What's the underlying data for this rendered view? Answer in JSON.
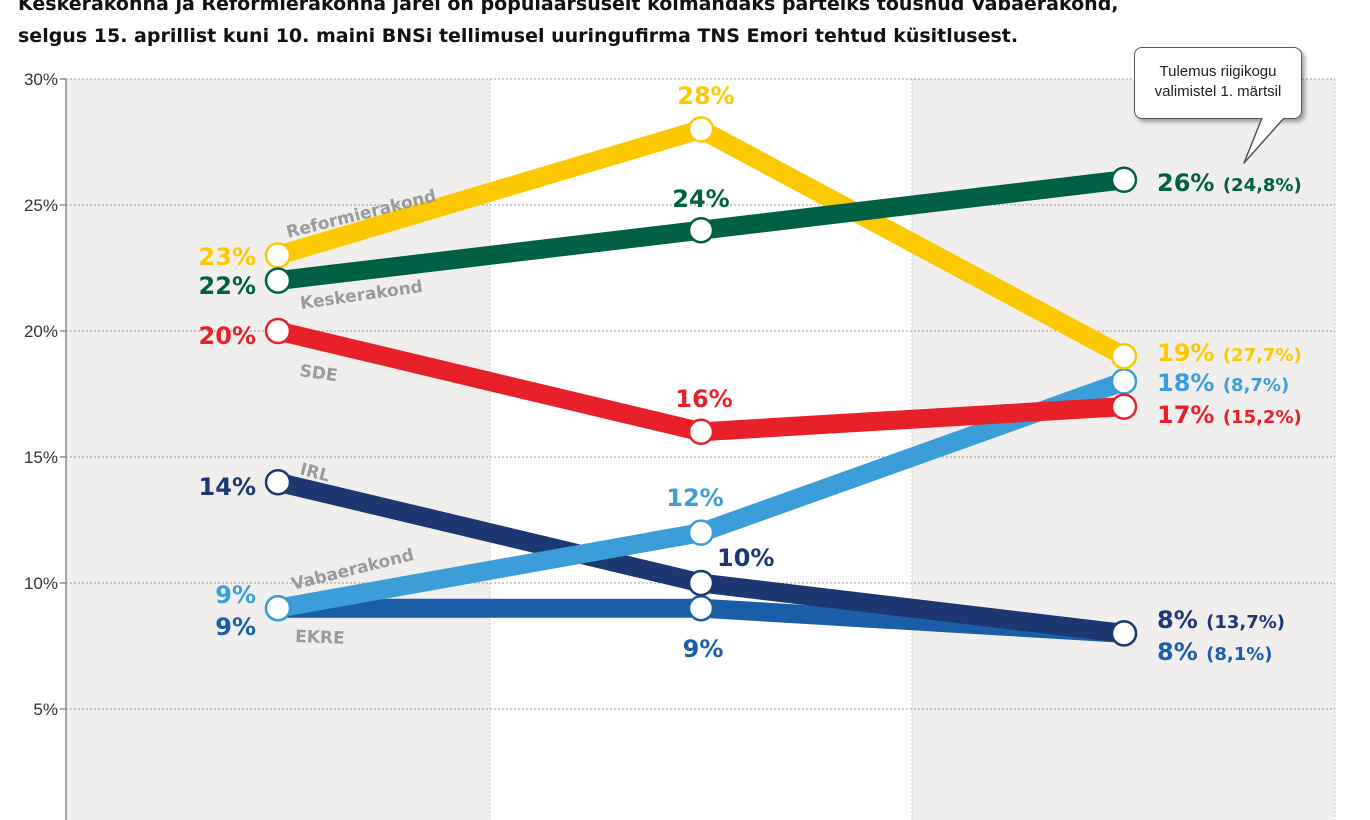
{
  "subtitle_lines": [
    "Keskerakonna ja Reformierakonna järel on populaarsuselt kolmandaks parteiks tõusnud Vabaerakond,",
    "selgus 15. aprillist kuni 10. maini  BNSi tellimusel uuringufirma TNS Emori tehtud küsitlusest."
  ],
  "callout": {
    "line1": "Tulemus riigikogu",
    "line2": "valimistel 1. märtsil"
  },
  "chart_data": {
    "type": "line",
    "title": "",
    "xlabel": "",
    "ylabel": "",
    "ylim": [
      0,
      30
    ],
    "y_ticks": [
      "5%",
      "10%",
      "15%",
      "20%",
      "25%",
      "30%"
    ],
    "y_tick_values": [
      5,
      10,
      15,
      20,
      25,
      30
    ],
    "grid": true,
    "x": [
      1,
      2,
      3
    ],
    "series": [
      {
        "name": "Reformierakond",
        "color": "#fcc900",
        "values": [
          23,
          28,
          19
        ],
        "labels": [
          "23%",
          "28%",
          "19%"
        ],
        "election": "(27,7%)"
      },
      {
        "name": "Keskerakond",
        "color": "#006044",
        "values": [
          22,
          24,
          26
        ],
        "labels": [
          "22%",
          "24%",
          "26%"
        ],
        "election": "(24,8%)"
      },
      {
        "name": "SDE",
        "color": "#e8202a",
        "values": [
          20,
          16,
          17
        ],
        "labels": [
          "20%",
          "16%",
          "17%"
        ],
        "election": "(15,2%)"
      },
      {
        "name": "IRL",
        "color": "#1d3870",
        "values": [
          14,
          10,
          8
        ],
        "labels": [
          "14%",
          "10%",
          "8%"
        ],
        "election": "(13,7%)"
      },
      {
        "name": "EKRE",
        "color": "#1b5ea8",
        "values": [
          9,
          9,
          8
        ],
        "labels": [
          "9%",
          "9%",
          "8%"
        ],
        "election": "(8,1%)"
      },
      {
        "name": "Vabaerakond",
        "color": "#3b9ed9",
        "values": [
          9,
          12,
          18
        ],
        "labels": [
          "9%",
          "12%",
          "18%"
        ],
        "election": "(8,7%)"
      }
    ]
  }
}
